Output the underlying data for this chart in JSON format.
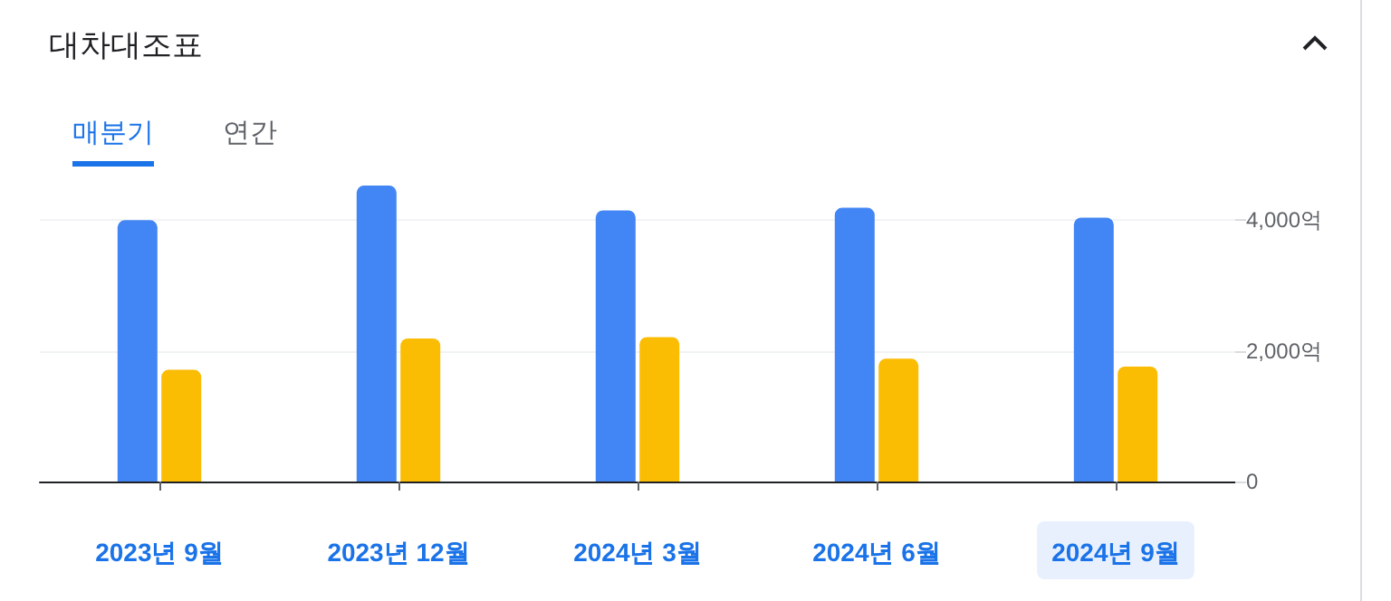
{
  "chart_data": {
    "type": "bar",
    "title": "대차대조표",
    "annotations": [
      "매분기",
      "연간"
    ],
    "categories": [
      "2023년 9월",
      "2023년 12월",
      "2024년 3월",
      "2024년 6월",
      "2024년 9월"
    ],
    "series": [
      {
        "color": "#4285f4",
        "values": [
          4000,
          4530,
          4150,
          4190,
          4040
        ]
      },
      {
        "color": "#fbbc04",
        "values": [
          1710,
          2190,
          2210,
          1880,
          1760
        ]
      }
    ],
    "ylim": [
      0,
      4600
    ],
    "yticks": [
      0,
      {
        "value": 2000,
        "label": "2,000억"
      },
      {
        "value": 4000,
        "label": "4,000억"
      }
    ],
    "grid": "y"
  }
}
